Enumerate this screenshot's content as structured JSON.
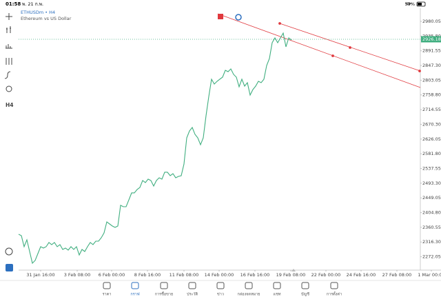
{
  "status_bar": {
    "time": "01:58",
    "date": "พ. 21 ก.พ.",
    "battery": "53%"
  },
  "chart_data": {
    "type": "line",
    "title": "ETHUSDm • H4",
    "subtitle": "Ethereum vs US Dollar",
    "color": "#3fae7f",
    "x": [
      0,
      1,
      2,
      3,
      4,
      5,
      6,
      7,
      8,
      9,
      10,
      11,
      12,
      13,
      14,
      15,
      16,
      17,
      18,
      19,
      20,
      21,
      22,
      23,
      24,
      25,
      26,
      27,
      28,
      29,
      30,
      31,
      32,
      33,
      34,
      35,
      36,
      37,
      38,
      39,
      40,
      41,
      42,
      43,
      44,
      45,
      46,
      47,
      48,
      49,
      50,
      51,
      52,
      53,
      54,
      55,
      56,
      57,
      58,
      59,
      60,
      61,
      62,
      63,
      64,
      65,
      66,
      67,
      68,
      69,
      70,
      71,
      72,
      73,
      74,
      75,
      76,
      77,
      78,
      79,
      80,
      81,
      82,
      83,
      84,
      85,
      86,
      87,
      88,
      89,
      90,
      91,
      92,
      93,
      94,
      95,
      96,
      97,
      98,
      99
    ],
    "values": [
      2339.6,
      2335.5,
      2302.3,
      2323.0,
      2287.8,
      2252.6,
      2260.9,
      2281.6,
      2302.3,
      2298.2,
      2302.3,
      2314.8,
      2308.5,
      2314.8,
      2302.3,
      2308.5,
      2294.0,
      2298.2,
      2292.0,
      2302.3,
      2294.0,
      2302.3,
      2277.4,
      2294.0,
      2287.8,
      2302.3,
      2314.8,
      2308.5,
      2318.9,
      2318.9,
      2329.3,
      2343.8,
      2376.9,
      2370.7,
      2364.5,
      2360.3,
      2364.5,
      2426.7,
      2422.5,
      2422.5,
      2443.2,
      2464.0,
      2464.0,
      2474.3,
      2480.5,
      2501.3,
      2495.1,
      2505.5,
      2501.3,
      2484.7,
      2501.3,
      2509.6,
      2505.5,
      2526.2,
      2526.2,
      2515.8,
      2522.0,
      2509.6,
      2513.7,
      2515.8,
      2551.0,
      2629.8,
      2650.5,
      2660.9,
      2640.1,
      2629.8,
      2609.0,
      2629.8,
      2696.1,
      2754.1,
      2806.0,
      2791.4,
      2799.7,
      2806.0,
      2812.2,
      2832.9,
      2828.7,
      2837.0,
      2820.5,
      2812.2,
      2783.2,
      2806.0,
      2785.2,
      2795.6,
      2758.3,
      2774.9,
      2785.2,
      2799.7,
      2795.6,
      2806.0,
      2847.4,
      2868.1,
      2915.8,
      2930.3,
      2915.8,
      2930.3,
      2944.8,
      2903.4,
      2930.3,
      2924.1
    ],
    "last_price": 2926.18,
    "xlim": [
      0,
      145.75
    ],
    "xticks": [
      {
        "value": 8,
        "label": "31 Jan 16:00"
      },
      {
        "value": 21.25,
        "label": "3 Feb 08:00"
      },
      {
        "value": 33.75,
        "label": "6 Feb 00:00"
      },
      {
        "value": 46.75,
        "label": "8 Feb 16:00"
      },
      {
        "value": 60,
        "label": "11 Feb 08:00"
      },
      {
        "value": 72.75,
        "label": "14 Feb 00:00"
      },
      {
        "value": 85.75,
        "label": "16 Feb 16:00"
      },
      {
        "value": 98.75,
        "label": "19 Feb 08:00"
      },
      {
        "value": 111.5,
        "label": "22 Feb 00:00"
      },
      {
        "value": 124.25,
        "label": "24 Feb 16:00"
      },
      {
        "value": 137.25,
        "label": "27 Feb 08:00"
      },
      {
        "value": 149.75,
        "label": "1 Mar 00:00"
      }
    ],
    "ylim": [
      2231.84,
      3019.43
    ],
    "yticks": [
      2980.05,
      {
        "value": 2935.8,
        "label": "2935.80"
      },
      2891.55,
      {
        "value": 2847.3,
        "label": "2847.30"
      },
      2803.05,
      {
        "value": 2758.8,
        "label": "2758.80"
      },
      2714.55,
      {
        "value": 2670.3,
        "label": "2670.30"
      },
      2626.05,
      {
        "value": 2581.8,
        "label": "2581.80"
      },
      2537.55,
      {
        "value": 2493.3,
        "label": "2493.30"
      },
      2449.05,
      {
        "value": 2404.8,
        "label": "2404.80"
      },
      2360.55,
      {
        "value": 2316.3,
        "label": "2316.30"
      },
      2272.05
    ]
  },
  "toolbar": {
    "timeframe": "H4"
  },
  "nav": [
    "ราคา",
    "กราฟ",
    "การซื้อขาย",
    "ประวัติ",
    "ข่าว",
    "กล่องจดหมาย",
    "แชท",
    "บัญชี",
    "การตั้งค่า"
  ]
}
